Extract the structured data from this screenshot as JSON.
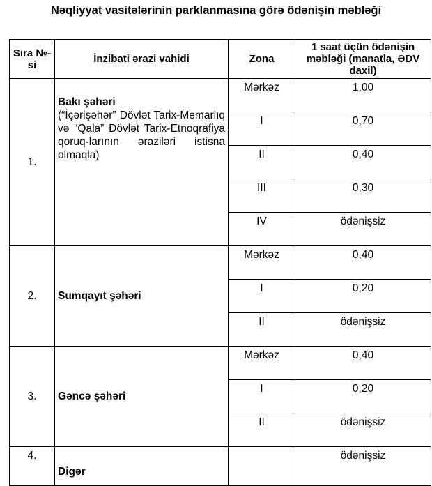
{
  "title": "Nəqliyyat vasitələrinin parklanmasına görə ödənişin məbləği",
  "headers": {
    "no": "Sıra №-si",
    "unit": "İnzibati ərazi vahidi",
    "zone": "Zona",
    "amount": "1 saat üçün ödənişin məbləği (manatla, ƏDV daxil)"
  },
  "rows": [
    {
      "no": "1.",
      "name": "Bakı şəhəri",
      "note": "(“İçərişəhər” Dövlət Tarix-Memarlıq və “Qala” Dövlət Tarix-Etnoqrafiya qoruq-larının əraziləri istisna olmaqla)",
      "zones": [
        {
          "zone": "Mərkəz",
          "amount": "1,00"
        },
        {
          "zone": "I",
          "amount": "0,70"
        },
        {
          "zone": "II",
          "amount": "0,40"
        },
        {
          "zone": "III",
          "amount": "0,30"
        },
        {
          "zone": "IV",
          "amount": "ödənişsiz"
        }
      ]
    },
    {
      "no": "2.",
      "name": "Sumqayıt şəhəri",
      "zones": [
        {
          "zone": "Mərkəz",
          "amount": "0,40"
        },
        {
          "zone": "I",
          "amount": "0,20"
        },
        {
          "zone": "II",
          "amount": "ödənişsiz"
        }
      ]
    },
    {
      "no": "3.",
      "name": "Gəncə şəhəri",
      "zones": [
        {
          "zone": "Mərkəz",
          "amount": "0,40"
        },
        {
          "zone": "I",
          "amount": "0,20"
        },
        {
          "zone": "II",
          "amount": "ödənişsiz"
        }
      ]
    },
    {
      "no": "4.",
      "name": "Digər",
      "zones": [
        {
          "zone": "",
          "amount": "ödənişsiz"
        }
      ]
    }
  ]
}
